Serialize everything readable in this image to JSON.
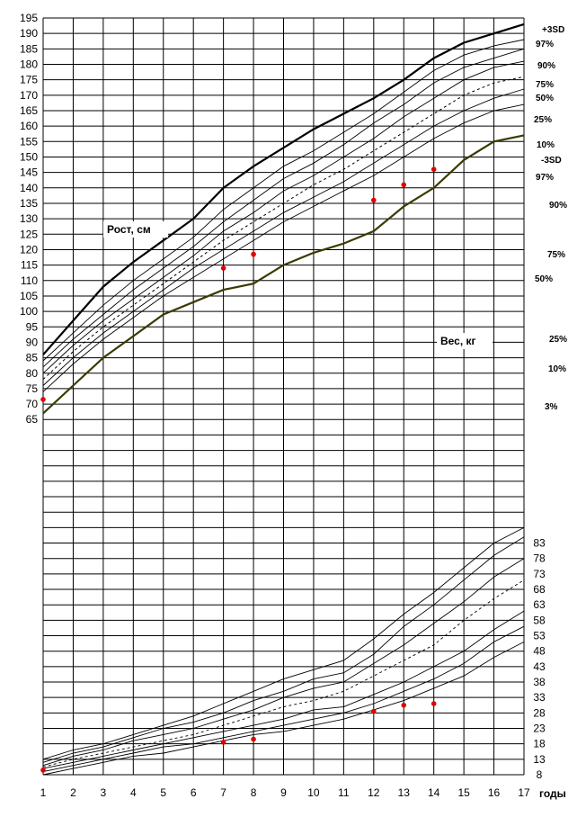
{
  "chart_data": {
    "type": "line",
    "x_ticks": [
      1,
      2,
      3,
      4,
      5,
      6,
      7,
      8,
      9,
      10,
      11,
      12,
      13,
      14,
      15,
      16,
      17
    ],
    "xlabel": "годы",
    "height_axis": {
      "label": "Рост, см",
      "ticks": [
        "195",
        "190",
        "185",
        "180",
        "175",
        "170",
        "165",
        "160",
        "155",
        "150",
        "145",
        "140",
        "135",
        "130",
        "125",
        "120",
        "115",
        "110",
        "105",
        "100",
        "95",
        "90",
        "85",
        "80",
        "75",
        "70",
        "65"
      ],
      "ylim": [
        65,
        195
      ]
    },
    "weight_axis": {
      "label": "Вес, кг",
      "ticks": [
        "83",
        "78",
        "73",
        "68",
        "63",
        "58",
        "53",
        "48",
        "43",
        "38",
        "33",
        "28",
        "23",
        "18",
        "13",
        "8"
      ],
      "ylim": [
        8,
        85
      ]
    },
    "height_series": [
      {
        "name": "+3SD",
        "style": "bold",
        "values": [
          86,
          97,
          108,
          116,
          123,
          130,
          140,
          147,
          153,
          159,
          164,
          169,
          175,
          182,
          187,
          190,
          193
        ]
      },
      {
        "name": "97%",
        "style": "thin",
        "values": [
          84,
          93,
          102,
          110,
          117,
          124,
          133,
          140,
          147,
          152,
          158,
          164,
          171,
          178,
          183,
          186,
          188
        ]
      },
      {
        "name": "90%",
        "style": "thin",
        "values": [
          82,
          91,
          99,
          107,
          114,
          121,
          129,
          136,
          143,
          148,
          154,
          161,
          167,
          174,
          179,
          182,
          185
        ]
      },
      {
        "name": "75%",
        "style": "thin",
        "values": [
          80,
          89,
          97,
          104,
          111,
          118,
          126,
          132,
          139,
          144,
          150,
          156,
          163,
          169,
          175,
          179,
          181
        ]
      },
      {
        "name": "50%",
        "style": "dashed",
        "values": [
          78,
          87,
          95,
          102,
          109,
          116,
          123,
          129,
          135,
          141,
          146,
          152,
          158,
          164,
          170,
          174,
          176
        ]
      },
      {
        "name": "25%",
        "style": "thin",
        "values": [
          76,
          85,
          93,
          100,
          107,
          114,
          120,
          126,
          132,
          137,
          142,
          148,
          154,
          160,
          165,
          169,
          172
        ]
      },
      {
        "name": "10%",
        "style": "thin",
        "values": [
          74,
          83,
          91,
          98,
          105,
          111,
          117,
          123,
          129,
          134,
          139,
          144,
          150,
          156,
          161,
          165,
          167
        ]
      },
      {
        "name": "-3SD",
        "style": "bold",
        "values": [
          67,
          76,
          85,
          92,
          99,
          103,
          107,
          109,
          115,
          119,
          122,
          126,
          134,
          140,
          149,
          155,
          157
        ]
      }
    ],
    "weight_series": [
      {
        "name": "97%",
        "values": [
          13,
          16,
          18,
          21,
          24,
          27,
          31,
          35,
          39,
          42,
          45,
          52,
          60,
          67,
          75,
          83,
          88
        ]
      },
      {
        "name": "90%",
        "values": [
          12,
          15,
          17,
          20,
          23,
          25,
          28,
          32,
          35,
          39,
          41,
          47,
          56,
          63,
          71,
          79,
          85
        ]
      },
      {
        "name": "75%",
        "values": [
          11,
          14,
          16,
          19,
          21,
          23,
          26,
          29,
          33,
          36,
          38,
          44,
          50,
          57,
          64,
          72,
          78
        ]
      },
      {
        "name": "50%",
        "values": [
          10.5,
          13,
          15,
          17,
          19,
          21,
          24,
          27,
          30,
          32,
          35,
          40,
          45,
          50,
          58,
          65,
          71
        ]
      },
      {
        "name": "25%",
        "values": [
          10,
          12,
          14,
          16,
          18,
          20,
          22,
          24,
          26,
          29,
          30,
          34,
          38,
          43,
          48,
          55,
          61
        ]
      },
      {
        "name": "10%",
        "values": [
          9,
          11,
          13,
          15,
          17,
          18,
          20,
          22,
          24,
          26,
          28,
          31,
          35,
          39,
          44,
          51,
          56
        ]
      },
      {
        "name": "3%",
        "values": [
          8,
          10,
          12,
          14,
          15,
          17,
          19,
          21,
          22,
          24,
          26,
          29,
          32,
          36,
          40,
          46,
          51
        ]
      }
    ],
    "right_labels": [
      "+3SD",
      "97%",
      "90%",
      "75%",
      "50%",
      "25%",
      "10%",
      "-3SD",
      "97%",
      "90%",
      "75%",
      "50%",
      "25%",
      "10%",
      "3%"
    ],
    "height_points": [
      [
        1,
        71.5
      ],
      [
        7,
        114
      ],
      [
        8,
        118.5
      ],
      [
        12,
        136
      ],
      [
        13,
        141
      ],
      [
        14,
        146
      ]
    ],
    "weight_points": [
      [
        1,
        9.5
      ],
      [
        7,
        18.5
      ],
      [
        8,
        19.5
      ],
      [
        12,
        28.5
      ],
      [
        13,
        30.5
      ],
      [
        14,
        31
      ]
    ],
    "colors": {
      "grid": "#000000",
      "bold_line": "#000000",
      "minus3sd_line": "#3a3a00",
      "point": "#e00000"
    },
    "grid": true
  }
}
